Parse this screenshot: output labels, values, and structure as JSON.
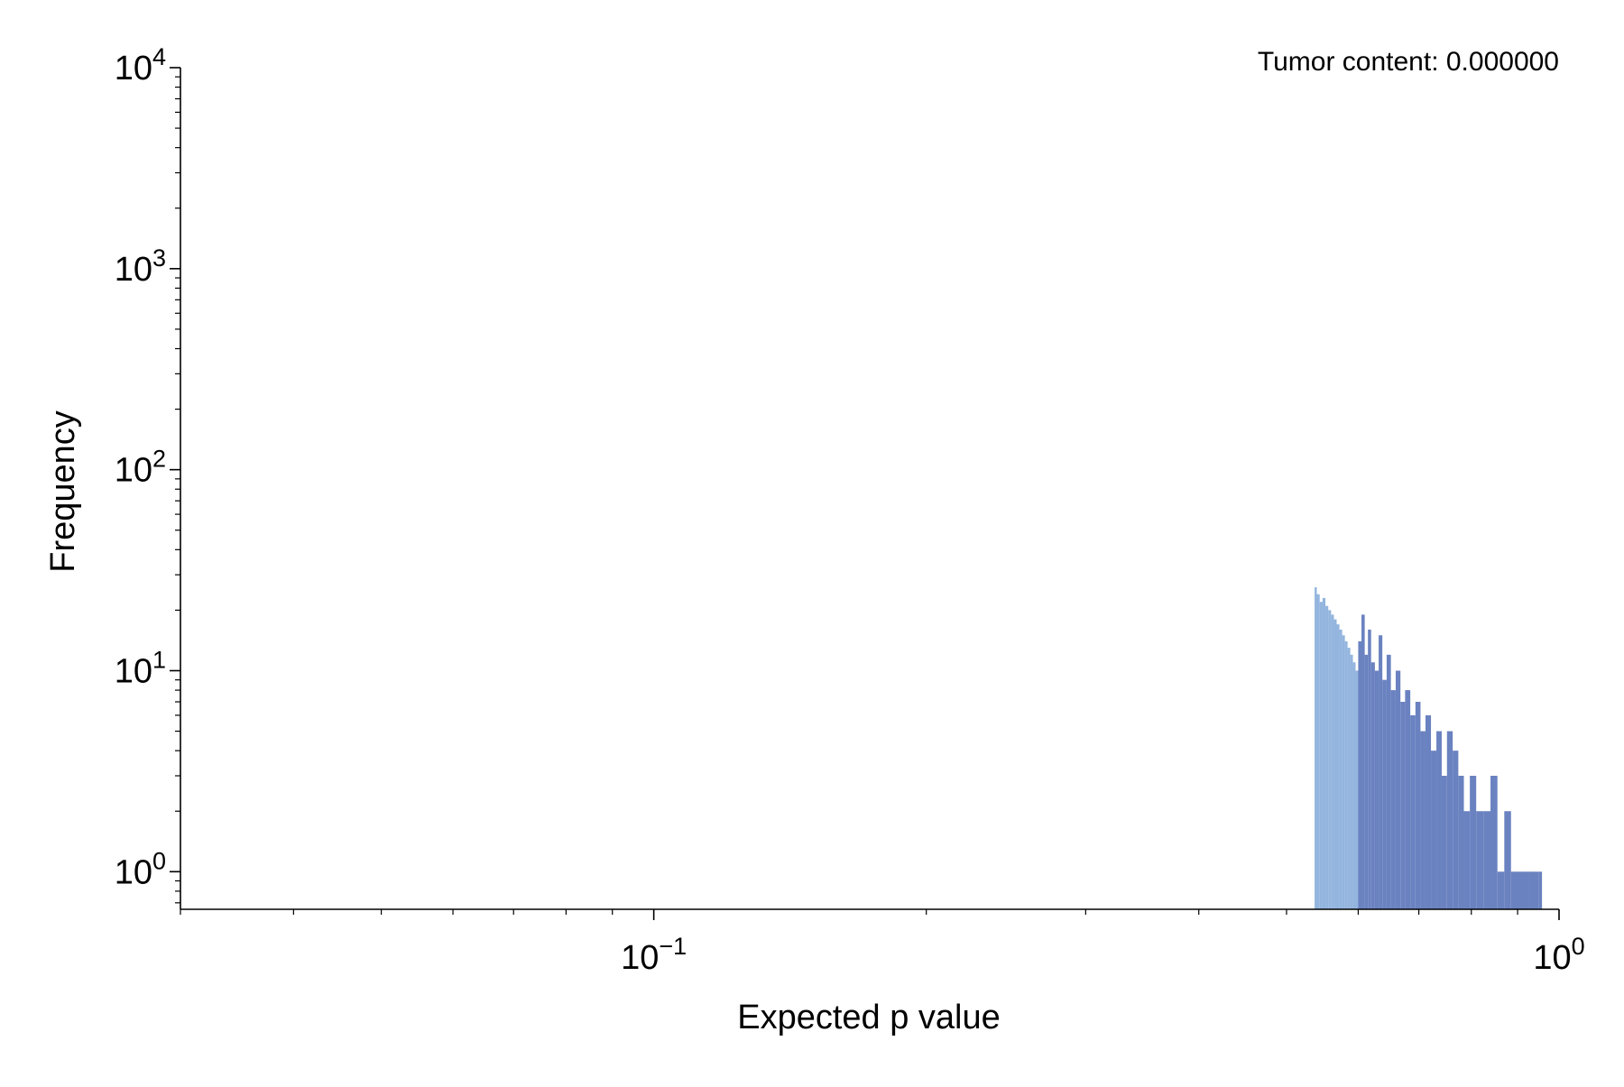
{
  "chart_data": {
    "type": "bar",
    "title": "",
    "annotation": "Tumor content: 0.000000",
    "xlabel": "Expected p value",
    "ylabel": "Frequency",
    "xscale": "log",
    "yscale": "log",
    "xlim": [
      0.03,
      1.0
    ],
    "ylim": [
      0.65,
      10000
    ],
    "x_ticks": [
      {
        "value": 0.1,
        "base": "10",
        "exp": "−1"
      },
      {
        "value": 1.0,
        "base": "10",
        "exp": "0"
      }
    ],
    "y_ticks": [
      {
        "value": 1,
        "base": "10",
        "exp": "0"
      },
      {
        "value": 10,
        "base": "10",
        "exp": "1"
      },
      {
        "value": 100,
        "base": "10",
        "exp": "2"
      },
      {
        "value": 1000,
        "base": "10",
        "exp": "3"
      },
      {
        "value": 10000,
        "base": "10",
        "exp": "4"
      }
    ],
    "grid": false,
    "legend": "none",
    "series": [
      {
        "color": "#93b5de",
        "x": [
          0.537,
          0.54,
          0.544,
          0.548,
          0.552,
          0.556,
          0.56,
          0.564,
          0.568,
          0.572,
          0.576,
          0.58,
          0.584,
          0.588,
          0.592,
          0.596
        ],
        "values": [
          26,
          24,
          22,
          23,
          21,
          20,
          19,
          18,
          17,
          16,
          15,
          14,
          13,
          12,
          11,
          10
        ]
      },
      {
        "color": "#6a82c0",
        "x": [
          0.6,
          0.605,
          0.61,
          0.615,
          0.62,
          0.626,
          0.632,
          0.638,
          0.645,
          0.652,
          0.66,
          0.668,
          0.676,
          0.685,
          0.694,
          0.703,
          0.712,
          0.722,
          0.732,
          0.742,
          0.752,
          0.763,
          0.774,
          0.785,
          0.797,
          0.81,
          0.825,
          0.84,
          0.855,
          0.87,
          0.885,
          0.905,
          0.925,
          0.95
        ],
        "values": [
          14,
          19,
          12,
          16,
          11,
          10,
          15,
          9,
          12,
          8,
          10,
          7,
          8,
          6,
          7,
          5,
          6,
          4,
          5,
          3,
          5,
          4,
          3,
          2,
          3,
          2,
          2,
          3,
          1,
          2,
          1,
          1,
          1,
          1
        ]
      }
    ]
  }
}
